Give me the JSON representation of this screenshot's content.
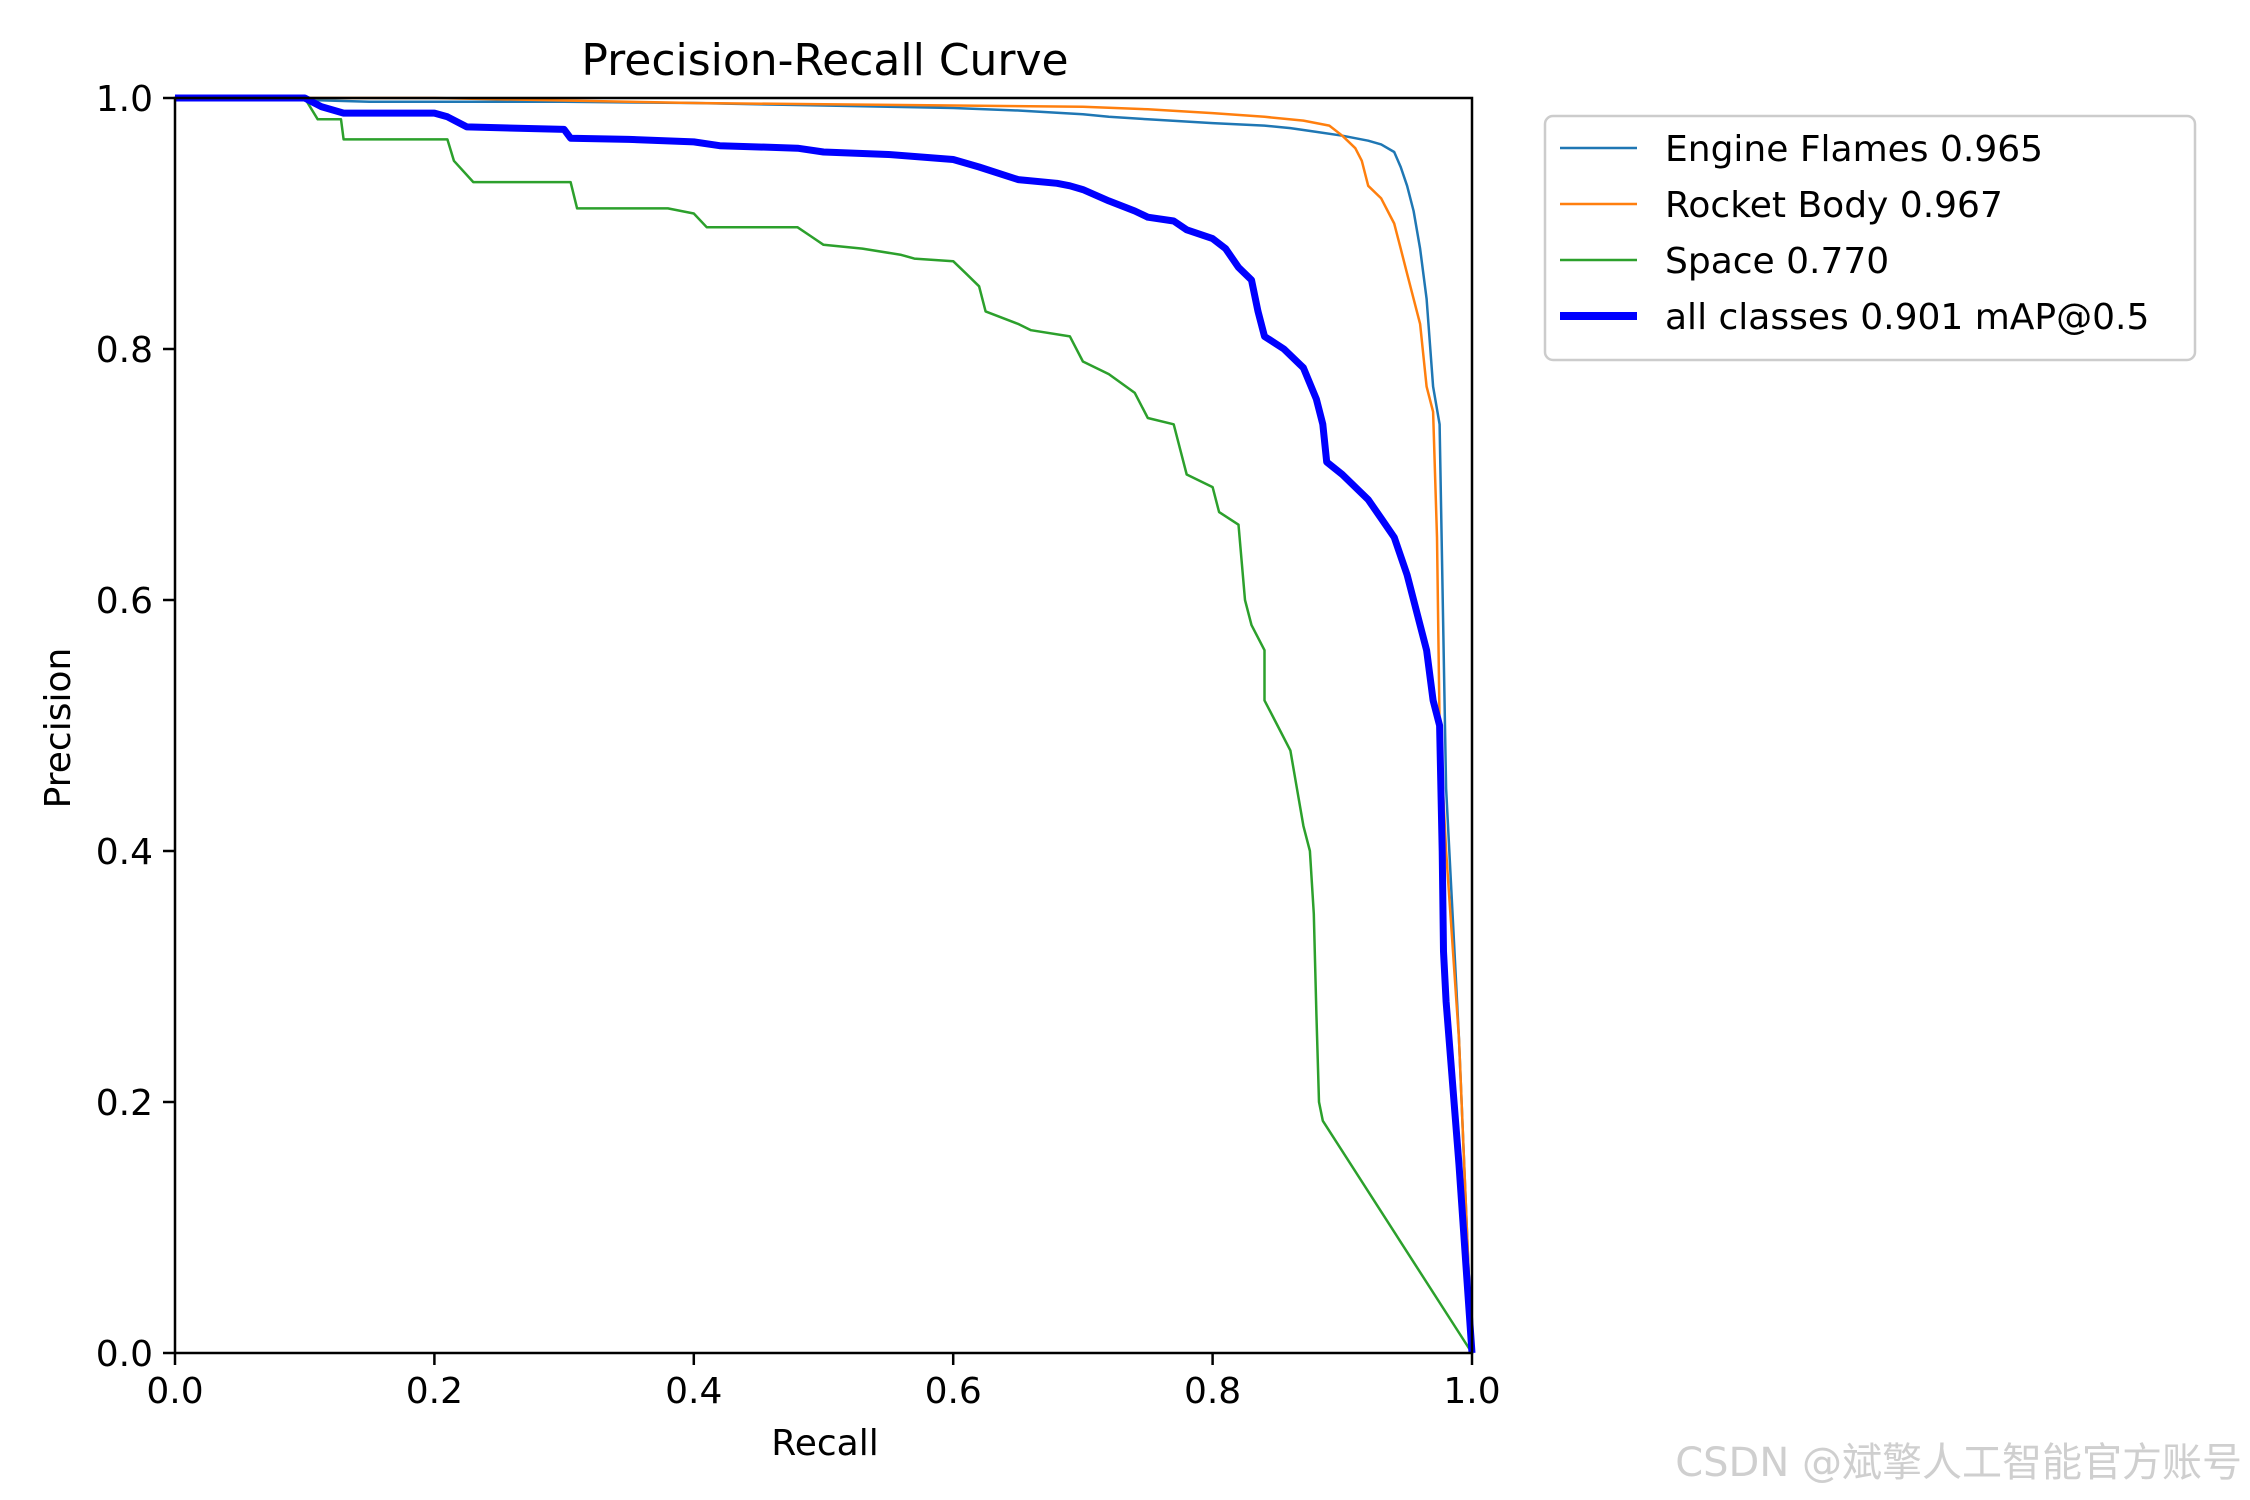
{
  "watermark": "CSDN @斌擎人工智能官方账号",
  "chart_data": {
    "type": "line",
    "title": "Precision-Recall Curve",
    "xlabel": "Recall",
    "ylabel": "Precision",
    "xlim": [
      0,
      1
    ],
    "ylim": [
      0,
      1
    ],
    "xticks": [
      "0.0",
      "0.2",
      "0.4",
      "0.6",
      "0.8",
      "1.0"
    ],
    "yticks": [
      "0.0",
      "0.2",
      "0.4",
      "0.6",
      "0.8",
      "1.0"
    ],
    "grid": false,
    "legend_position": "outside-top-right",
    "series": [
      {
        "name": "Engine Flames 0.965",
        "color": "#1f77b4",
        "width": "thin",
        "points": [
          [
            0,
            1.0
          ],
          [
            0.05,
            1.0
          ],
          [
            0.15,
            0.997
          ],
          [
            0.3,
            0.997
          ],
          [
            0.4,
            0.996
          ],
          [
            0.5,
            0.994
          ],
          [
            0.55,
            0.993
          ],
          [
            0.6,
            0.992
          ],
          [
            0.65,
            0.99
          ],
          [
            0.7,
            0.987
          ],
          [
            0.72,
            0.985
          ],
          [
            0.75,
            0.983
          ],
          [
            0.8,
            0.98
          ],
          [
            0.84,
            0.978
          ],
          [
            0.86,
            0.976
          ],
          [
            0.88,
            0.973
          ],
          [
            0.9,
            0.97
          ],
          [
            0.92,
            0.966
          ],
          [
            0.93,
            0.963
          ],
          [
            0.94,
            0.957
          ],
          [
            0.945,
            0.945
          ],
          [
            0.95,
            0.93
          ],
          [
            0.955,
            0.91
          ],
          [
            0.96,
            0.88
          ],
          [
            0.965,
            0.84
          ],
          [
            0.97,
            0.77
          ],
          [
            0.975,
            0.74
          ],
          [
            0.98,
            0.45
          ],
          [
            0.99,
            0.25
          ],
          [
            1.0,
            0.0
          ]
        ]
      },
      {
        "name": "Rocket Body 0.967",
        "color": "#ff7f0e",
        "width": "thin",
        "points": [
          [
            0,
            1.0
          ],
          [
            0.2,
            1.0
          ],
          [
            0.3,
            0.998
          ],
          [
            0.4,
            0.996
          ],
          [
            0.5,
            0.995
          ],
          [
            0.6,
            0.994
          ],
          [
            0.7,
            0.993
          ],
          [
            0.75,
            0.991
          ],
          [
            0.8,
            0.988
          ],
          [
            0.84,
            0.985
          ],
          [
            0.87,
            0.982
          ],
          [
            0.89,
            0.978
          ],
          [
            0.9,
            0.97
          ],
          [
            0.91,
            0.96
          ],
          [
            0.915,
            0.95
          ],
          [
            0.92,
            0.93
          ],
          [
            0.93,
            0.92
          ],
          [
            0.935,
            0.91
          ],
          [
            0.94,
            0.9
          ],
          [
            0.945,
            0.88
          ],
          [
            0.95,
            0.86
          ],
          [
            0.955,
            0.84
          ],
          [
            0.96,
            0.82
          ],
          [
            0.965,
            0.77
          ],
          [
            0.97,
            0.75
          ],
          [
            0.973,
            0.65
          ],
          [
            0.975,
            0.5
          ],
          [
            0.98,
            0.4
          ],
          [
            0.99,
            0.25
          ],
          [
            1.0,
            0.0
          ]
        ]
      },
      {
        "name": "Space 0.770",
        "color": "#2ca02c",
        "width": "thin",
        "points": [
          [
            0,
            1.0
          ],
          [
            0.1,
            1.0
          ],
          [
            0.11,
            0.983
          ],
          [
            0.128,
            0.983
          ],
          [
            0.13,
            0.967
          ],
          [
            0.21,
            0.967
          ],
          [
            0.215,
            0.95
          ],
          [
            0.23,
            0.933
          ],
          [
            0.305,
            0.933
          ],
          [
            0.31,
            0.912
          ],
          [
            0.38,
            0.912
          ],
          [
            0.4,
            0.908
          ],
          [
            0.41,
            0.897
          ],
          [
            0.48,
            0.897
          ],
          [
            0.49,
            0.89
          ],
          [
            0.5,
            0.883
          ],
          [
            0.53,
            0.88
          ],
          [
            0.56,
            0.875
          ],
          [
            0.57,
            0.872
          ],
          [
            0.6,
            0.87
          ],
          [
            0.61,
            0.86
          ],
          [
            0.62,
            0.85
          ],
          [
            0.625,
            0.83
          ],
          [
            0.65,
            0.82
          ],
          [
            0.66,
            0.815
          ],
          [
            0.69,
            0.81
          ],
          [
            0.7,
            0.79
          ],
          [
            0.72,
            0.78
          ],
          [
            0.74,
            0.765
          ],
          [
            0.75,
            0.745
          ],
          [
            0.77,
            0.74
          ],
          [
            0.775,
            0.72
          ],
          [
            0.78,
            0.7
          ],
          [
            0.8,
            0.69
          ],
          [
            0.805,
            0.67
          ],
          [
            0.82,
            0.66
          ],
          [
            0.825,
            0.6
          ],
          [
            0.83,
            0.58
          ],
          [
            0.84,
            0.56
          ],
          [
            0.84,
            0.52
          ],
          [
            0.85,
            0.5
          ],
          [
            0.86,
            0.48
          ],
          [
            0.865,
            0.45
          ],
          [
            0.87,
            0.42
          ],
          [
            0.875,
            0.4
          ],
          [
            0.878,
            0.35
          ],
          [
            0.88,
            0.27
          ],
          [
            0.882,
            0.2
          ],
          [
            0.885,
            0.185
          ],
          [
            1.0,
            0.0
          ]
        ]
      },
      {
        "name": "all classes 0.901 mAP@0.5",
        "color": "#0000ff",
        "width": "thick",
        "points": [
          [
            0,
            1.0
          ],
          [
            0.1,
            1.0
          ],
          [
            0.113,
            0.993
          ],
          [
            0.13,
            0.988
          ],
          [
            0.2,
            0.988
          ],
          [
            0.21,
            0.985
          ],
          [
            0.225,
            0.977
          ],
          [
            0.3,
            0.975
          ],
          [
            0.305,
            0.968
          ],
          [
            0.35,
            0.967
          ],
          [
            0.4,
            0.965
          ],
          [
            0.42,
            0.962
          ],
          [
            0.48,
            0.96
          ],
          [
            0.5,
            0.957
          ],
          [
            0.55,
            0.955
          ],
          [
            0.6,
            0.951
          ],
          [
            0.62,
            0.945
          ],
          [
            0.65,
            0.935
          ],
          [
            0.68,
            0.932
          ],
          [
            0.69,
            0.93
          ],
          [
            0.7,
            0.927
          ],
          [
            0.72,
            0.918
          ],
          [
            0.74,
            0.91
          ],
          [
            0.75,
            0.905
          ],
          [
            0.77,
            0.902
          ],
          [
            0.78,
            0.895
          ],
          [
            0.8,
            0.888
          ],
          [
            0.81,
            0.88
          ],
          [
            0.82,
            0.865
          ],
          [
            0.83,
            0.855
          ],
          [
            0.835,
            0.83
          ],
          [
            0.84,
            0.81
          ],
          [
            0.855,
            0.8
          ],
          [
            0.87,
            0.785
          ],
          [
            0.88,
            0.76
          ],
          [
            0.885,
            0.74
          ],
          [
            0.888,
            0.71
          ],
          [
            0.9,
            0.7
          ],
          [
            0.91,
            0.69
          ],
          [
            0.92,
            0.68
          ],
          [
            0.93,
            0.665
          ],
          [
            0.94,
            0.65
          ],
          [
            0.95,
            0.62
          ],
          [
            0.96,
            0.58
          ],
          [
            0.965,
            0.56
          ],
          [
            0.97,
            0.52
          ],
          [
            0.975,
            0.5
          ],
          [
            0.977,
            0.4
          ],
          [
            0.978,
            0.32
          ],
          [
            0.98,
            0.28
          ],
          [
            0.99,
            0.15
          ],
          [
            1.0,
            0.0
          ]
        ]
      }
    ]
  }
}
